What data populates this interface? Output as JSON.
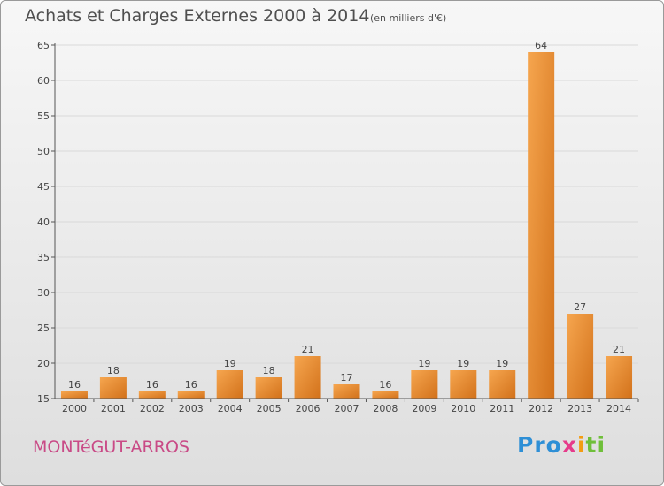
{
  "header": {
    "title": "Achats et Charges Externes 2000 à 2014",
    "unit": "(en milliers d'€)"
  },
  "footer": {
    "place": "MONTéGUT-ARROS",
    "brand_parts": [
      "Pro",
      "x",
      "i",
      "ti"
    ]
  },
  "colors": {
    "bar_light": "#f6a64f",
    "bar_dark": "#d2711a",
    "grid": "#d9d9d9",
    "axis": "#555555",
    "place": "#c94a86"
  },
  "chart_data": {
    "type": "bar",
    "title": "Achats et Charges Externes 2000 à 2014",
    "subtitle": "(en milliers d'€)",
    "categories": [
      "2000",
      "2001",
      "2002",
      "2003",
      "2004",
      "2005",
      "2006",
      "2007",
      "2008",
      "2009",
      "2010",
      "2011",
      "2012",
      "2013",
      "2014"
    ],
    "values": [
      16,
      18,
      16,
      16,
      19,
      18,
      21,
      17,
      16,
      19,
      19,
      19,
      64,
      27,
      21
    ],
    "ylim": [
      15,
      65
    ],
    "yticks": [
      15,
      20,
      25,
      30,
      35,
      40,
      45,
      50,
      55,
      60,
      65
    ],
    "grid": true,
    "xlabel": "",
    "ylabel": ""
  }
}
